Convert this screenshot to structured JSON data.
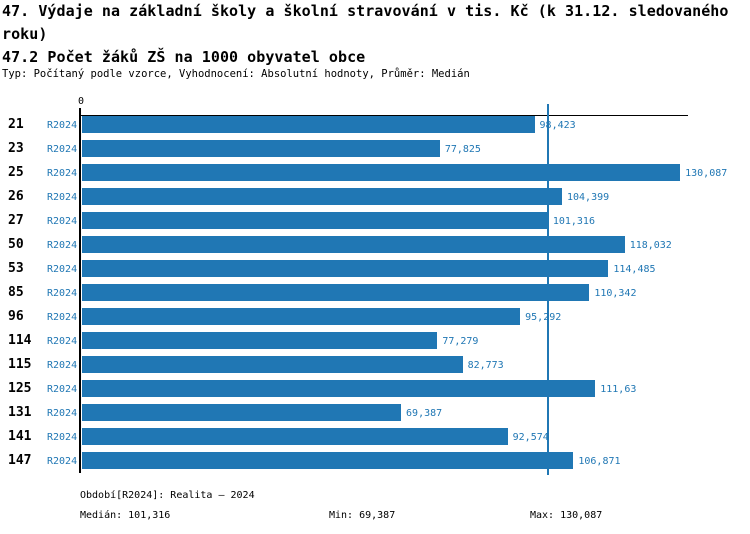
{
  "header": {
    "title_line1": "47. Výdaje na základní školy a školní stravování v tis. Kč (k 31.12. sledovaného",
    "title_line2": "roku)",
    "title_line3": "47.2 Počet žáků ZŠ na 1000 obyvatel obce",
    "meta_line": "Typ: Počítaný podle vzorce, Vyhodnocení: Absolutní hodnoty, Průměr: Medián"
  },
  "chart_data": {
    "type": "bar",
    "orientation": "horizontal",
    "title": "47.2 Počet žáků ZŠ na 1000 obyvatel obce",
    "categories": [
      "21",
      "23",
      "25",
      "26",
      "27",
      "50",
      "53",
      "85",
      "96",
      "114",
      "115",
      "125",
      "131",
      "141",
      "147"
    ],
    "series": [
      {
        "name": "R2024",
        "values": [
          98.423,
          77.825,
          130.087,
          104.399,
          101.316,
          118.032,
          114.485,
          110.342,
          95.292,
          77.279,
          82.773,
          111.63,
          69.387,
          92.574,
          106.871
        ],
        "value_labels": [
          "98,423",
          "77,825",
          "130,087",
          "104,399",
          "101,316",
          "118,032",
          "114,485",
          "110,342",
          "95,292",
          "77,279",
          "82,773",
          "111,63",
          "69,387",
          "92,574",
          "106,871"
        ]
      }
    ],
    "row_series_label": "R2024",
    "xlim": [
      0,
      131.8
    ],
    "zero_tick_label": "0",
    "median_value": 101.316,
    "grid": false,
    "legend_position": "none"
  },
  "colors": {
    "bar": "#2077b4",
    "median_line": "#2077b4",
    "blue_text": "#2077b4",
    "axis": "#000000"
  },
  "footer": {
    "period_label": "Období[R2024]: Realita – 2024",
    "median_label": "Medián: 101,316",
    "min_label": "Min: 69,387",
    "max_label": "Max: 130,087"
  }
}
